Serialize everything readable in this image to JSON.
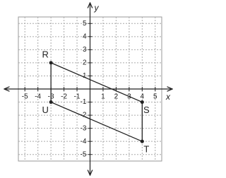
{
  "chart_data": {
    "type": "polygon",
    "x": [
      -3,
      4,
      4,
      -3
    ],
    "values": [
      2,
      -1,
      -4,
      -1
    ],
    "point_labels": [
      "R",
      "S",
      "T",
      "U"
    ],
    "color": "#222222",
    "xlim": [
      -5.5,
      5.5
    ],
    "ylim": [
      -5.5,
      5.5
    ],
    "xticks": [
      -5,
      -4,
      -3,
      -2,
      -1,
      1,
      2,
      3,
      4,
      5
    ],
    "yticks": [
      -5,
      -4,
      -3,
      -2,
      -1,
      1,
      2,
      3,
      4,
      5
    ],
    "xlabel": "x",
    "ylabel": "y",
    "grid": true
  }
}
